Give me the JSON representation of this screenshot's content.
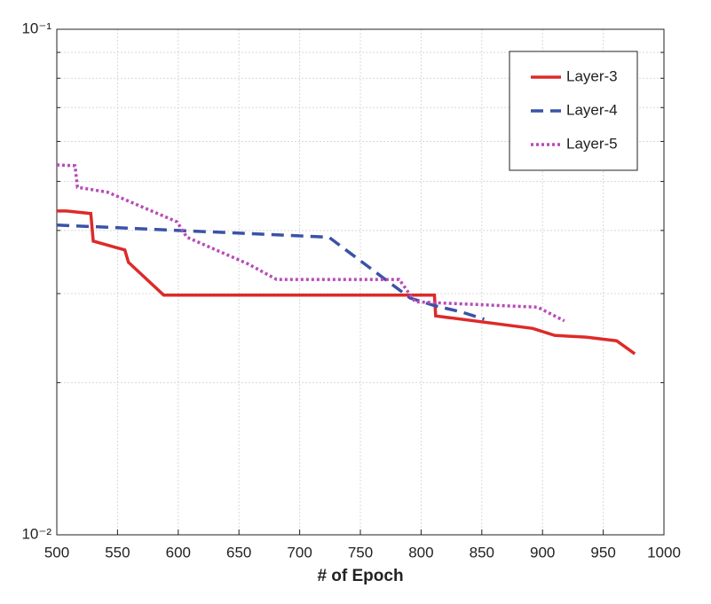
{
  "chart_data": {
    "type": "line",
    "x_label": "# of Epoch",
    "xlim": [
      500,
      1000
    ],
    "xticks": [
      500,
      550,
      600,
      650,
      700,
      750,
      800,
      850,
      900,
      950,
      1000
    ],
    "ylim": [
      0.01,
      0.1
    ],
    "log_y": true,
    "yticks": [
      {
        "value": 0.01,
        "label": "10⁻²"
      },
      {
        "value": 0.1,
        "label": "10⁻¹"
      }
    ],
    "yminorticks": [
      0.02,
      0.03,
      0.04,
      0.05,
      0.06,
      0.07,
      0.08,
      0.09
    ],
    "grid": true,
    "legend": "upper right",
    "series": [
      {
        "name": "Layer-3",
        "color": "#dd2a2a",
        "style": "solid",
        "x": [
          500,
          508,
          528,
          530,
          556,
          559,
          588,
          811,
          812,
          892,
          910,
          936,
          961,
          976
        ],
        "values": [
          0.0437,
          0.0437,
          0.0432,
          0.0381,
          0.0366,
          0.0346,
          0.0298,
          0.0298,
          0.0271,
          0.0256,
          0.0248,
          0.0246,
          0.0242,
          0.0228
        ]
      },
      {
        "name": "Layer-4",
        "color": "#3a52a8",
        "style": "dashed",
        "x": [
          500,
          724,
          791,
          811,
          833,
          852
        ],
        "values": [
          0.041,
          0.0388,
          0.0294,
          0.0284,
          0.0276,
          0.0267
        ]
      },
      {
        "name": "Layer-5",
        "color": "#b84ab8",
        "style": "dotted",
        "x": [
          500,
          515,
          517,
          542,
          599,
          607,
          658,
          681,
          782,
          795,
          896,
          918
        ],
        "values": [
          0.0539,
          0.0537,
          0.0487,
          0.0476,
          0.0416,
          0.0388,
          0.0343,
          0.032,
          0.032,
          0.0289,
          0.0282,
          0.0265
        ]
      }
    ]
  }
}
